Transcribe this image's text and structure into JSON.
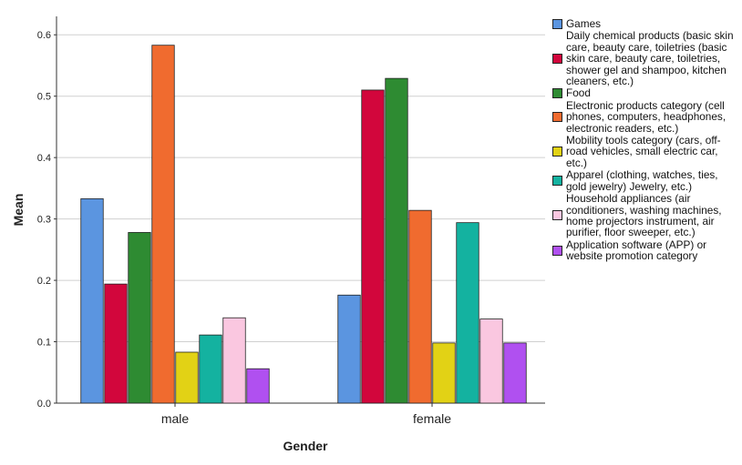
{
  "chart_data": {
    "type": "bar",
    "xlabel": "Gender",
    "ylabel": "Mean",
    "categories": [
      "male",
      "female"
    ],
    "ylim": [
      0,
      0.63
    ],
    "yticks": [
      "0.0",
      "0.1",
      "0.2",
      "0.3",
      "0.4",
      "0.5",
      "0.6"
    ],
    "grid": true,
    "legend_position": "right",
    "series": [
      {
        "name": "Games",
        "color": "#5b95e0",
        "values": [
          0.333,
          0.176
        ]
      },
      {
        "name": "Daily chemical products (basic skin care, beauty care, toiletries (basic skin care, beauty care, toiletries, shower gel and shampoo, kitchen cleaners, etc.)",
        "color": "#d2063c",
        "values": [
          0.194,
          0.51
        ]
      },
      {
        "name": "Food",
        "color": "#2e8b32",
        "values": [
          0.278,
          0.529
        ]
      },
      {
        "name": "Electronic products category (cell phones, computers, headphones, electronic readers, etc.)",
        "color": "#f06b2f",
        "values": [
          0.583,
          0.314
        ]
      },
      {
        "name": "Mobility tools category (cars, off-road vehicles, small electric car, etc.)",
        "color": "#e2d215",
        "values": [
          0.083,
          0.098
        ]
      },
      {
        "name": "Apparel (clothing, watches, ties, gold jewelry) Jewelry, etc.)",
        "color": "#14b2a0",
        "values": [
          0.111,
          0.294
        ]
      },
      {
        "name": "Household appliances (air conditioners, washing machines, home projectors instrument, air purifier, floor sweeper, etc.)",
        "color": "#fac7e0",
        "values": [
          0.139,
          0.137
        ]
      },
      {
        "name": "Application software (APP) or website promotion category",
        "color": "#b050f0",
        "values": [
          0.056,
          0.098
        ]
      }
    ]
  }
}
